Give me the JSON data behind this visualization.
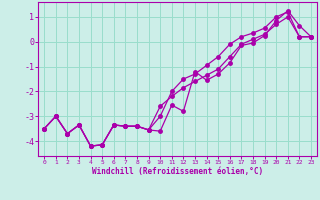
{
  "xlabel": "Windchill (Refroidissement éolien,°C)",
  "bg_color": "#cceee8",
  "grid_color": "#99ddcc",
  "line_color": "#aa00aa",
  "x_hours": [
    0,
    1,
    2,
    3,
    4,
    5,
    6,
    7,
    8,
    9,
    10,
    11,
    12,
    13,
    14,
    15,
    16,
    17,
    18,
    19,
    20,
    21,
    22,
    23
  ],
  "line_detail": [
    -3.5,
    -3.0,
    -3.7,
    -3.35,
    -4.2,
    -4.15,
    -3.35,
    -3.4,
    -3.4,
    -3.55,
    -3.6,
    -2.55,
    -2.8,
    -1.2,
    -1.55,
    -1.3,
    -0.85,
    -0.15,
    -0.05,
    0.25,
    0.85,
    1.25,
    0.65,
    0.2
  ],
  "line_upper": [
    -3.5,
    -3.0,
    -3.7,
    -3.35,
    -4.2,
    -4.15,
    -3.35,
    -3.4,
    -3.4,
    -3.55,
    -3.0,
    -2.0,
    -1.5,
    -1.3,
    -0.95,
    -0.6,
    -0.1,
    0.2,
    0.35,
    0.55,
    1.0,
    1.2,
    0.2,
    0.2
  ],
  "line_lower": [
    -3.5,
    -3.0,
    -3.7,
    -3.35,
    -4.2,
    -4.15,
    -3.35,
    -3.4,
    -3.4,
    -3.55,
    -2.6,
    -2.2,
    -1.85,
    -1.6,
    -1.35,
    -1.1,
    -0.6,
    -0.1,
    0.1,
    0.3,
    0.7,
    1.0,
    0.2,
    0.2
  ],
  "ylim": [
    -4.6,
    1.6
  ],
  "xlim": [
    -0.5,
    23.5
  ],
  "yticks": [
    1,
    0,
    -1,
    -2,
    -3,
    -4
  ],
  "xticks": [
    0,
    1,
    2,
    3,
    4,
    5,
    6,
    7,
    8,
    9,
    10,
    11,
    12,
    13,
    14,
    15,
    16,
    17,
    18,
    19,
    20,
    21,
    22,
    23
  ],
  "figsize": [
    3.2,
    2.0
  ],
  "dpi": 100
}
